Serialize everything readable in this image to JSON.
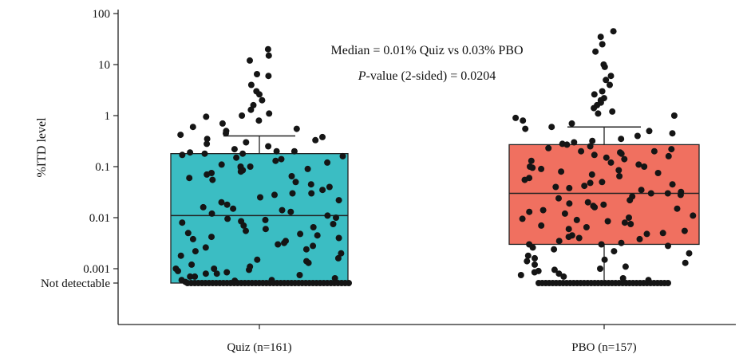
{
  "chart_data": {
    "type": "box",
    "ylabel": "%ITD level",
    "yscale": "log",
    "ylim": [
      0.0001,
      100
    ],
    "y_ticks": [
      {
        "value": 100,
        "label": "100"
      },
      {
        "value": 10,
        "label": "10"
      },
      {
        "value": 1,
        "label": "1"
      },
      {
        "value": 0.1,
        "label": "0.1"
      },
      {
        "value": 0.01,
        "label": "0.01"
      },
      {
        "value": 0.001,
        "label": "0.001"
      },
      {
        "value": 0.0005,
        "label": "Not detectable"
      }
    ],
    "categories": [
      "Quiz (n=161)",
      "PBO (n=157)"
    ],
    "annotations": [
      {
        "text": "Median = 0.01% Quiz vs 0.03% PBO"
      },
      {
        "text_italic": "P",
        "text": "-value (2-sided) = 0.0204"
      }
    ],
    "series": [
      {
        "color": "#3bbdc3",
        "box": {
          "q1": 0.0005,
          "median": 0.011,
          "q3": 0.18,
          "whisker_low": 0.0005,
          "whisker_high": 0.4
        },
        "points": [
          20,
          15,
          12,
          6.5,
          6,
          4,
          3,
          2.6,
          2,
          1.6,
          1.3,
          1.1,
          1,
          0.95,
          0.8,
          0.7,
          0.6,
          0.55,
          0.5,
          0.45,
          0.42,
          0.38,
          0.35,
          0.33,
          0.3,
          0.28,
          0.25,
          0.22,
          0.2,
          0.2,
          0.19,
          0.18,
          0.18,
          0.17,
          0.16,
          0.15,
          0.14,
          0.13,
          0.12,
          0.11,
          0.1,
          0.1,
          0.095,
          0.09,
          0.085,
          0.08,
          0.075,
          0.07,
          0.065,
          0.06,
          0.055,
          0.05,
          0.045,
          0.04,
          0.035,
          0.03,
          0.03,
          0.028,
          0.025,
          0.022,
          0.02,
          0.018,
          0.016,
          0.015,
          0.014,
          0.013,
          0.012,
          0.011,
          0.01,
          0.0095,
          0.009,
          0.0085,
          0.008,
          0.0075,
          0.007,
          0.0065,
          0.006,
          0.0055,
          0.005,
          0.0048,
          0.0045,
          0.0042,
          0.004,
          0.0038,
          0.0035,
          0.0032,
          0.003,
          0.0028,
          0.0026,
          0.0024,
          0.0022,
          0.002,
          0.0018,
          0.0016,
          0.0015,
          0.0014,
          0.0013,
          0.0012,
          0.0011,
          0.001,
          0.001,
          0.00095,
          0.0009,
          0.00085,
          0.0008,
          0.0008,
          0.00075,
          0.0007,
          0.0007,
          0.00065,
          0.0006,
          0.0006,
          0.00058,
          0.00055
        ],
        "not_detectable_count": 46
      },
      {
        "color": "#f07060",
        "box": {
          "q1": 0.003,
          "median": 0.03,
          "q3": 0.27,
          "whisker_low": 0.0005,
          "whisker_high": 0.6
        },
        "points": [
          45,
          35,
          25,
          18,
          10,
          9,
          6,
          5,
          4,
          3,
          2.6,
          2.2,
          2,
          1.8,
          1.6,
          1.4,
          1.2,
          1.1,
          1,
          0.9,
          0.8,
          0.7,
          0.6,
          0.55,
          0.5,
          0.45,
          0.4,
          0.35,
          0.32,
          0.3,
          0.28,
          0.27,
          0.25,
          0.23,
          0.22,
          0.2,
          0.2,
          0.19,
          0.18,
          0.17,
          0.16,
          0.15,
          0.14,
          0.13,
          0.12,
          0.11,
          0.1,
          0.1,
          0.095,
          0.09,
          0.085,
          0.08,
          0.075,
          0.07,
          0.065,
          0.06,
          0.055,
          0.05,
          0.048,
          0.045,
          0.042,
          0.04,
          0.038,
          0.035,
          0.032,
          0.03,
          0.03,
          0.028,
          0.026,
          0.024,
          0.022,
          0.02,
          0.019,
          0.018,
          0.017,
          0.016,
          0.015,
          0.014,
          0.013,
          0.012,
          0.011,
          0.01,
          0.0095,
          0.009,
          0.0085,
          0.008,
          0.0075,
          0.007,
          0.0065,
          0.006,
          0.0055,
          0.005,
          0.0048,
          0.0045,
          0.0042,
          0.004,
          0.0038,
          0.0035,
          0.0032,
          0.003,
          0.003,
          0.0028,
          0.0026,
          0.0024,
          0.0022,
          0.002,
          0.0018,
          0.0016,
          0.0015,
          0.0014,
          0.0013,
          0.0012,
          0.0011,
          0.001,
          0.00095,
          0.0009,
          0.00085,
          0.0008,
          0.00075,
          0.0007,
          0.00065,
          0.0006
        ],
        "not_detectable_count": 38
      }
    ]
  }
}
